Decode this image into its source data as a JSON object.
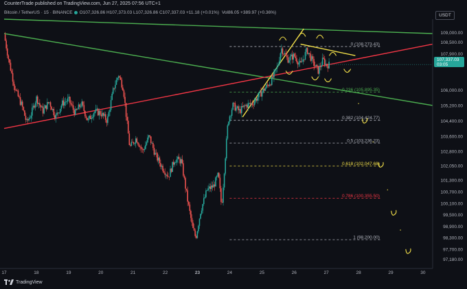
{
  "header": {
    "published": "CounterTrade published on TradingView.com, Jun 27, 2025 07:56 UTC+1",
    "symbol": "Bitcoin / TetherUS · 15 · BINANCE",
    "ohlc": "O107,326.86 H107,373.03 L107,326.86 C107,337.03 +11.18 (+0.01%)",
    "volume": "Vol86.05 +389.97 (+0.36%)",
    "currency": "USDT"
  },
  "footer": {
    "brand": "TradingView"
  },
  "last_price": {
    "value": "107,337.03",
    "countdown": "03:05",
    "price": 107337.03,
    "color": "#26a69a"
  },
  "colors": {
    "background": "#0e1016",
    "up": "#26a69a",
    "down": "#ef5350",
    "green_line": "#4caf50",
    "red_line": "#f23645",
    "yellow": "#f5e24a",
    "white_dash": "#b2b5be"
  },
  "chart_data": {
    "type": "candlestick",
    "y_scale": "linear",
    "ylim": [
      96700,
      109700
    ],
    "x_domain": [
      "Jun 17",
      "Jun 30"
    ],
    "x_ticks": [
      "17",
      "18",
      "19",
      "20",
      "21",
      "22",
      "23",
      "24",
      "25",
      "26",
      "27",
      "28",
      "29",
      "30"
    ],
    "y_ticks": [
      "109,000.00",
      "108,500.00",
      "107,900.00",
      "107,337.03",
      "106,000.00",
      "105,200.00",
      "104,400.00",
      "103,600.00",
      "102,800.00",
      "102,050.00",
      "101,300.00",
      "100,700.00",
      "100,100.00",
      "99,500.00",
      "98,900.00",
      "98,300.00",
      "97,700.00",
      "97,180.00"
    ],
    "y_tick_values": [
      109000,
      108500,
      107900,
      107337.03,
      106000,
      105200,
      104400,
      103600,
      102800,
      102050,
      101300,
      100700,
      100100,
      99500,
      98900,
      98300,
      97700,
      97180
    ],
    "price_path": [
      [
        17.0,
        108900
      ],
      [
        17.15,
        107500
      ],
      [
        17.35,
        106000
      ],
      [
        17.55,
        105200
      ],
      [
        17.7,
        104300
      ],
      [
        17.85,
        104800
      ],
      [
        18.0,
        105600
      ],
      [
        18.2,
        104900
      ],
      [
        18.4,
        105400
      ],
      [
        18.6,
        104600
      ],
      [
        18.8,
        105300
      ],
      [
        19.0,
        105500
      ],
      [
        19.2,
        104800
      ],
      [
        19.4,
        105300
      ],
      [
        19.6,
        104400
      ],
      [
        19.8,
        104900
      ],
      [
        20.0,
        104800
      ],
      [
        20.2,
        104400
      ],
      [
        20.4,
        106100
      ],
      [
        20.55,
        106800
      ],
      [
        20.7,
        106100
      ],
      [
        20.8,
        104500
      ],
      [
        20.9,
        103000
      ],
      [
        21.1,
        103500
      ],
      [
        21.3,
        102800
      ],
      [
        21.5,
        103600
      ],
      [
        21.7,
        102600
      ],
      [
        21.9,
        102000
      ],
      [
        22.1,
        101500
      ],
      [
        22.3,
        102400
      ],
      [
        22.5,
        102300
      ],
      [
        22.7,
        100200
      ],
      [
        22.85,
        98800
      ],
      [
        22.95,
        98300
      ],
      [
        23.1,
        99700
      ],
      [
        23.3,
        100800
      ],
      [
        23.5,
        101000
      ],
      [
        23.65,
        101600
      ],
      [
        23.75,
        99900
      ],
      [
        23.85,
        102200
      ],
      [
        23.95,
        104400
      ],
      [
        24.1,
        105200
      ],
      [
        24.3,
        104900
      ],
      [
        24.5,
        105200
      ],
      [
        24.7,
        105300
      ],
      [
        24.9,
        105700
      ],
      [
        25.1,
        106100
      ],
      [
        25.3,
        106500
      ],
      [
        25.5,
        107300
      ],
      [
        25.6,
        108200
      ],
      [
        25.8,
        107600
      ],
      [
        26.0,
        107800
      ],
      [
        26.2,
        107300
      ],
      [
        26.4,
        108100
      ],
      [
        26.6,
        107400
      ],
      [
        26.75,
        107000
      ],
      [
        26.9,
        107600
      ],
      [
        27.0,
        107300
      ],
      [
        27.1,
        107337.03
      ]
    ],
    "trendlines": [
      {
        "name": "upper-green",
        "color": "#4caf50",
        "points": [
          [
            17.0,
            109700
          ],
          [
            30.3,
            108950
          ]
        ]
      },
      {
        "name": "lower-green",
        "color": "#4caf50",
        "points": [
          [
            17.0,
            108950
          ],
          [
            30.3,
            105200
          ]
        ]
      },
      {
        "name": "red-support",
        "color": "#f23645",
        "points": [
          [
            17.0,
            104000
          ],
          [
            30.3,
            108400
          ]
        ]
      },
      {
        "name": "yellow-rising",
        "color": "#f5e24a",
        "points": [
          [
            24.4,
            104600
          ],
          [
            26.3,
            109200
          ]
        ]
      },
      {
        "name": "yellow-falling",
        "color": "#f5e24a",
        "points": [
          [
            26.2,
            108400
          ],
          [
            27.9,
            107800
          ]
        ]
      }
    ],
    "fib_levels": [
      {
        "ratio": "0",
        "label": "0 (108,273.43)",
        "value": 108273.43,
        "color": "#b2b5be"
      },
      {
        "ratio": "0.236",
        "label": "0.236 (105,895.35)",
        "value": 105895.35,
        "color": "#4caf50"
      },
      {
        "ratio": "0.382",
        "label": "0.382 (104,424.77)",
        "value": 104424.77,
        "color": "#b2b5be"
      },
      {
        "ratio": "0.5",
        "label": "0.5 (103,236.23)",
        "value": 103236.23,
        "color": "#b2b5be"
      },
      {
        "ratio": "0.618",
        "label": "0.618 (102,047.68)",
        "value": 102047.68,
        "color": "#f5e24a"
      },
      {
        "ratio": "0.786",
        "label": "0.786 (100,355.50)",
        "value": 100355.5,
        "color": "#f23645"
      },
      {
        "ratio": "1",
        "label": "1 (98,200.00)",
        "value": 98200,
        "color": "#b2b5be"
      }
    ],
    "projection_path": [
      [
        27.7,
        107000
      ],
      [
        28.0,
        105300
      ],
      [
        28.2,
        104400
      ],
      [
        28.45,
        103300
      ],
      [
        28.7,
        102100
      ],
      [
        28.9,
        100800
      ],
      [
        29.1,
        99600
      ],
      [
        29.3,
        98700
      ],
      [
        29.55,
        97600
      ]
    ],
    "grid": false,
    "legend": "none"
  }
}
